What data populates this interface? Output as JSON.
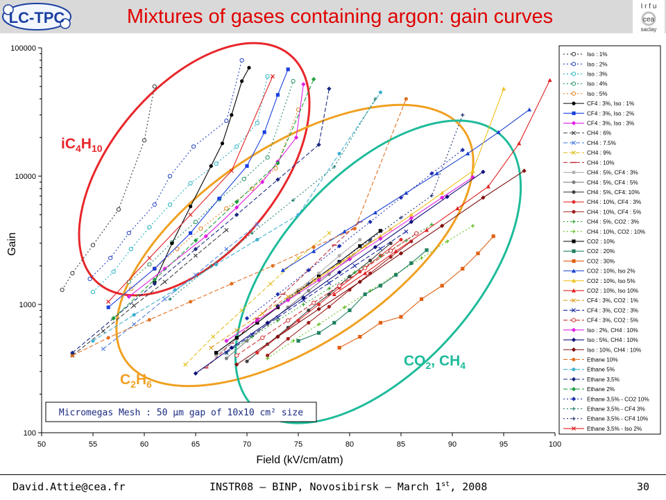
{
  "header": {
    "title": "Mixtures of gases containing argon: gain curves",
    "logo_left_text": "LC-TPC",
    "logo_right_lines": [
      "I r f u",
      "cea",
      "saclay"
    ]
  },
  "footer": {
    "email": "David.Attie@cea.fr",
    "conference": "INSTR08 – BINP, Novosibirsk – March 1",
    "conference_sup": "st",
    "conference_year": ", 2008",
    "page": "30"
  },
  "chart_data": {
    "type": "scatter",
    "xlabel": "Field (kV/cm/atm)",
    "ylabel": "Gain",
    "xlim": [
      50,
      100
    ],
    "ylim": [
      100,
      100000
    ],
    "yscale": "log",
    "x_ticks": [
      "50",
      "55",
      "60",
      "65",
      "70",
      "75",
      "80",
      "85",
      "90",
      "95",
      "100"
    ],
    "y_ticks": [
      "100",
      "1000",
      "10000",
      "100000"
    ],
    "grid": false,
    "legend_position": "right",
    "annotation_box": "Micromegas Mesh : 50 µm gap of 10x10 cm² size",
    "group_labels": [
      {
        "main": "iC",
        "sub1": "4",
        "mid": "H",
        "sub2": "10",
        "color": "#e8262a"
      },
      {
        "main": "C",
        "sub1": "2",
        "mid": "H",
        "sub2": "6",
        "color": "#f0a020"
      },
      {
        "main": "CO",
        "sub1": "2",
        "mid": ", CH",
        "sub2": "4",
        "color": "#1dbb9a"
      }
    ],
    "ellipses": [
      {
        "name": "iC4H10",
        "color": "#e8262a"
      },
      {
        "name": "C2H6",
        "color": "#f0a020"
      },
      {
        "name": "CO2, CH4",
        "color": "#1dbb9a"
      }
    ],
    "series": [
      {
        "name": "Iso : 1%",
        "color": "#333333",
        "dash": "dot",
        "marker": "circle-open",
        "x": [
          52,
          53,
          55,
          57.5,
          60,
          61
        ],
        "y": [
          1300,
          1750,
          2900,
          5500,
          19000,
          50000
        ]
      },
      {
        "name": "Iso : 2%",
        "color": "#2040c0",
        "dash": "dot",
        "marker": "circle-open",
        "x": [
          54.7,
          56.7,
          58.5,
          61,
          62.5,
          64.8,
          68,
          69.5
        ],
        "y": [
          1580,
          2300,
          3600,
          6000,
          10000,
          17000,
          27000,
          80000
        ]
      },
      {
        "name": "Iso : 3%",
        "color": "#20b0c0",
        "dash": "dot",
        "marker": "circle-open",
        "x": [
          55,
          57,
          58.7,
          60.5,
          62.5,
          64.5,
          67,
          69,
          71,
          72
        ],
        "y": [
          1250,
          1800,
          2700,
          4000,
          6000,
          8800,
          12500,
          17000,
          26000,
          60000
        ]
      },
      {
        "name": "Iso : 4%",
        "color": "#209060",
        "dash": "dot",
        "marker": "circle-open",
        "x": [
          58.5,
          60.5,
          62.7,
          65,
          67.3,
          69.7,
          72,
          74.5
        ],
        "y": [
          1500,
          2050,
          3050,
          4400,
          6600,
          9500,
          14000,
          55000
        ]
      },
      {
        "name": "Iso : 5%",
        "color": "#e08020",
        "dash": "dot",
        "marker": "circle-open",
        "x": [
          58.7,
          61,
          63.2,
          65.5,
          68,
          70.5,
          72.8,
          75
        ],
        "y": [
          1320,
          1900,
          2700,
          3900,
          5600,
          8000,
          11500,
          33000
        ]
      },
      {
        "name": "CF4 : 3%, Iso : 1%",
        "color": "#000000",
        "dash": "solid",
        "marker": "circle",
        "x": [
          61,
          62.7,
          64.5,
          66.5,
          67.6,
          68.5,
          69.5,
          70.2
        ],
        "y": [
          1500,
          3000,
          5800,
          12000,
          18000,
          30000,
          55000,
          70000
        ]
      },
      {
        "name": "CF4 : 3%, Iso : 2%",
        "color": "#1a40e0",
        "dash": "solid",
        "marker": "square",
        "x": [
          56.5,
          61,
          64.5,
          67.3,
          70,
          71.7,
          73,
          74
        ],
        "y": [
          950,
          1900,
          3600,
          6700,
          12000,
          22000,
          43000,
          68000
        ]
      },
      {
        "name": "CF4 : 3%, Iso : 3%",
        "color": "#e020e0",
        "dash": "solid",
        "marker": "diamond",
        "x": [
          58.5,
          62,
          66,
          69,
          71.5,
          73,
          74.8,
          75.5
        ],
        "y": [
          1150,
          1900,
          3400,
          5700,
          9000,
          13000,
          20000,
          52000
        ]
      },
      {
        "name": "CH4 : 6%",
        "color": "#404040",
        "dash": "dash",
        "marker": "x",
        "x": [
          53,
          56,
          59,
          62,
          65,
          68
        ],
        "y": [
          400,
          620,
          980,
          1500,
          2400,
          3800
        ]
      },
      {
        "name": "CH4 : 7.5%",
        "color": "#5080e0",
        "dash": "dash",
        "marker": "x",
        "x": [
          56,
          59,
          62,
          65,
          68,
          71
        ],
        "y": [
          450,
          700,
          1100,
          1700,
          2700,
          4200
        ]
      },
      {
        "name": "CH4 : 9%",
        "color": "#e0c020",
        "dash": "dash",
        "marker": "x",
        "x": [
          64,
          66.7,
          69.5,
          72.3,
          75,
          78
        ],
        "y": [
          340,
          560,
          900,
          1450,
          2300,
          3600
        ]
      },
      {
        "name": "CH4 : 10%",
        "color": "#c03040",
        "dash": "dash",
        "marker": "dash",
        "x": [
          66,
          68.5,
          71,
          73.5,
          76,
          78.5,
          81
        ],
        "y": [
          320,
          500,
          780,
          1200,
          1850,
          2900,
          4400
        ]
      },
      {
        "name": "CH4 : 5%, CF4 : 3%",
        "color": "#b0b0b0",
        "dash": "solid",
        "marker": "circle",
        "x": [
          67,
          69,
          71,
          73,
          75,
          77,
          79,
          81
        ],
        "y": [
          400,
          540,
          720,
          970,
          1300,
          1750,
          2400,
          3200
        ]
      },
      {
        "name": "CH4 : 5%, CF4 : 5%",
        "color": "#808080",
        "dash": "solid",
        "marker": "circle",
        "x": [
          68,
          70,
          72,
          74,
          76,
          78,
          80,
          82
        ],
        "y": [
          380,
          520,
          700,
          950,
          1280,
          1720,
          2300,
          3100
        ]
      },
      {
        "name": "CH4 : 5%, CF4: 10%",
        "color": "#404040",
        "dash": "solid",
        "marker": "circle",
        "x": [
          70,
          72,
          74,
          76,
          78,
          80,
          82,
          84
        ],
        "y": [
          360,
          490,
          660,
          900,
          1200,
          1650,
          2200,
          3000
        ]
      },
      {
        "name": "CH4 : 10%, CF4 : 3%",
        "color": "#e03030",
        "dash": "solid",
        "marker": "circle",
        "x": [
          71,
          73,
          75,
          77,
          79,
          81,
          83,
          85
        ],
        "y": [
          420,
          560,
          750,
          1000,
          1350,
          1800,
          2400,
          3200
        ]
      },
      {
        "name": "CH4 : 10%, CF4 : 5%",
        "color": "#a02020",
        "dash": "solid",
        "marker": "circle",
        "x": [
          72,
          74,
          76,
          78,
          80,
          82,
          84,
          86
        ],
        "y": [
          400,
          540,
          720,
          960,
          1300,
          1750,
          2350,
          3100
        ]
      },
      {
        "name": "CH4 : 5%, CO2 : 3%",
        "color": "#30a030",
        "dash": "dot",
        "marker": "plus",
        "x": [
          68,
          70.5,
          73,
          75.5,
          78,
          80.5,
          83,
          85.5,
          88
        ],
        "y": [
          420,
          560,
          750,
          1000,
          1330,
          1780,
          2370,
          3150,
          4200
        ]
      },
      {
        "name": "CH4 : 10%, CO2 : 10%",
        "color": "#60c020",
        "dash": "dot",
        "marker": "plus",
        "x": [
          72,
          74.5,
          77,
          79.5,
          82,
          84.5,
          87,
          89.5,
          92
        ],
        "y": [
          380,
          520,
          700,
          950,
          1280,
          1720,
          2300,
          3100,
          4100
        ]
      },
      {
        "name": "CO2 : 10%",
        "color": "#000000",
        "dash": "solid",
        "marker": "square",
        "x": [
          67,
          69,
          71,
          73,
          75,
          77,
          79,
          81,
          83
        ],
        "y": [
          420,
          550,
          720,
          950,
          1250,
          1650,
          2150,
          2850,
          3750
        ]
      },
      {
        "name": "CO2 : 20%",
        "color": "#208060",
        "dash": "solid",
        "marker": "square",
        "x": [
          75,
          77,
          78.5,
          80,
          81.5,
          83,
          84.5,
          86,
          87.5
        ],
        "y": [
          520,
          600,
          720,
          900,
          1200,
          1400,
          1700,
          2100,
          2650
        ]
      },
      {
        "name": "CO2 : 30%",
        "color": "#e06010",
        "dash": "solid",
        "marker": "square",
        "x": [
          79,
          81,
          83,
          85,
          87,
          89,
          91,
          92.5,
          94
        ],
        "y": [
          460,
          560,
          720,
          800,
          1100,
          1400,
          1900,
          2500,
          3400
        ]
      },
      {
        "name": "CO2 : 10%, Iso 2%",
        "color": "#1a40d0",
        "dash": "solid",
        "marker": "triangle",
        "x": [
          73.5,
          76.5,
          79.5,
          82.5,
          85.5,
          88.5,
          91.5,
          94.5,
          97.5
        ],
        "y": [
          1850,
          2600,
          3700,
          5200,
          7400,
          10500,
          15000,
          22000,
          33000
        ]
      },
      {
        "name": "CO2 : 10%, Iso 5%",
        "color": "#f0c020",
        "dash": "solid",
        "marker": "triangle",
        "x": [
          74,
          77,
          80,
          83,
          86,
          89,
          92,
          95
        ],
        "y": [
          1100,
          1600,
          2350,
          3400,
          5000,
          7400,
          11000,
          48000
        ]
      },
      {
        "name": "CO2 : 10%, Iso 10%",
        "color": "#e02020",
        "dash": "solid",
        "marker": "triangle",
        "x": [
          78.5,
          81.5,
          84.5,
          87.5,
          90.5,
          93.5,
          96.5,
          99.5
        ],
        "y": [
          1200,
          1750,
          2600,
          3800,
          5600,
          8300,
          18000,
          56000
        ]
      },
      {
        "name": "CF4 : 3%, CO2 : 1%",
        "color": "#e0a020",
        "dash": "dash",
        "marker": "x",
        "x": [
          66.5,
          69,
          71.5,
          74,
          76.5,
          79,
          81.5,
          84
        ],
        "y": [
          460,
          630,
          850,
          1150,
          1550,
          2100,
          2850,
          3850
        ]
      },
      {
        "name": "CF4 : 3%, CO2 : 3%",
        "color": "#2030a0",
        "dash": "dash",
        "marker": "x",
        "x": [
          68,
          70.5,
          73,
          75.5,
          78,
          80.5,
          83,
          85.5
        ],
        "y": [
          420,
          580,
          790,
          1080,
          1470,
          2000,
          2720,
          3700
        ]
      },
      {
        "name": "CF4 : 3%, CO2 : 5%",
        "color": "#d03030",
        "dash": "dash",
        "marker": "circle-open",
        "x": [
          69,
          71.5,
          74,
          76.5,
          79,
          81.5,
          84,
          86.5
        ],
        "y": [
          400,
          550,
          750,
          1030,
          1400,
          1920,
          2620,
          3580
        ]
      },
      {
        "name": "Iso : 2%, CH4 : 10%",
        "color": "#e020e0",
        "dash": "solid",
        "marker": "diamond",
        "x": [
          68,
          71,
          74,
          77,
          80,
          83,
          86,
          89,
          92
        ],
        "y": [
          520,
          750,
          1080,
          1550,
          2250,
          3250,
          4700,
          6800,
          9800
        ]
      },
      {
        "name": "Iso : 5%, CH4 : 10%",
        "color": "#10107a",
        "dash": "solid",
        "marker": "diamond",
        "x": [
          65,
          68.5,
          72,
          75.5,
          79,
          82.5,
          86,
          89.5,
          93
        ],
        "y": [
          290,
          460,
          720,
          1130,
          1780,
          2800,
          4400,
          6900,
          10800
        ]
      },
      {
        "name": "Iso : 10%, CH4 : 10%",
        "color": "#801010",
        "dash": "solid",
        "marker": "diamond",
        "x": [
          69,
          73,
          77,
          81,
          85,
          89,
          93,
          97
        ],
        "y": [
          340,
          560,
          920,
          1500,
          2500,
          4100,
          6800,
          11000
        ]
      },
      {
        "name": "Ethane 10%",
        "color": "#e07020",
        "dash": "dash",
        "marker": "circle",
        "x": [
          53,
          56.5,
          60.5,
          64.5,
          68.5,
          72.5,
          76.5,
          80.5,
          85.5
        ],
        "y": [
          400,
          550,
          760,
          1050,
          1450,
          2000,
          2800,
          3900,
          40000
        ]
      },
      {
        "name": "Ethane 5%",
        "color": "#40b0d0",
        "dash": "dash",
        "marker": "circle",
        "x": [
          55,
          59,
          63,
          67,
          71,
          75,
          79,
          83
        ],
        "y": [
          520,
          830,
          1300,
          2050,
          3200,
          5000,
          15000,
          45000
        ]
      },
      {
        "name": "Ethane 3,5%",
        "color": "#1a2a80",
        "dash": "dash",
        "marker": "diamond",
        "x": [
          53,
          57,
          61,
          65,
          69,
          73,
          77,
          78
        ],
        "y": [
          420,
          780,
          1450,
          2700,
          5000,
          9400,
          17600,
          48000
        ]
      },
      {
        "name": "Ethane 2%",
        "color": "#20a040",
        "dash": "dash",
        "marker": "diamond",
        "x": [
          57,
          61,
          65,
          69,
          73,
          76.5
        ],
        "y": [
          780,
          1560,
          3150,
          6300,
          12600,
          57000
        ]
      },
      {
        "name": "Ethane 3,5% - CO2 10%",
        "color": "#2030b0",
        "dash": "dot",
        "marker": "diamond",
        "x": [
          70,
          73,
          76,
          79,
          82,
          85,
          88,
          91
        ],
        "y": [
          780,
          1200,
          1850,
          2850,
          4400,
          6800,
          10500,
          16000
        ]
      },
      {
        "name": "Ethane 3,5% - CF4 3%",
        "color": "#208070",
        "dash": "dot",
        "marker": "plus",
        "x": [
          62.5,
          66.5,
          70.5,
          74.5,
          78.5,
          82.5
        ],
        "y": [
          1100,
          2000,
          3600,
          6500,
          11800,
          40000
        ]
      },
      {
        "name": "Ethane 3,5% - CF4 10%",
        "color": "#203070",
        "dash": "dot",
        "marker": "plus",
        "x": [
          73,
          76,
          79,
          82,
          85,
          88,
          91
        ],
        "y": [
          980,
          1450,
          2150,
          3200,
          4750,
          7050,
          30000
        ]
      },
      {
        "name": "Ethane 3,5% - Iso 2%",
        "color": "#e02020",
        "dash": "solid",
        "marker": "x",
        "x": [
          56.5,
          60.5,
          64.5,
          68.5,
          72.5
        ],
        "y": [
          1050,
          2300,
          5000,
          11000,
          60000
        ]
      }
    ]
  }
}
